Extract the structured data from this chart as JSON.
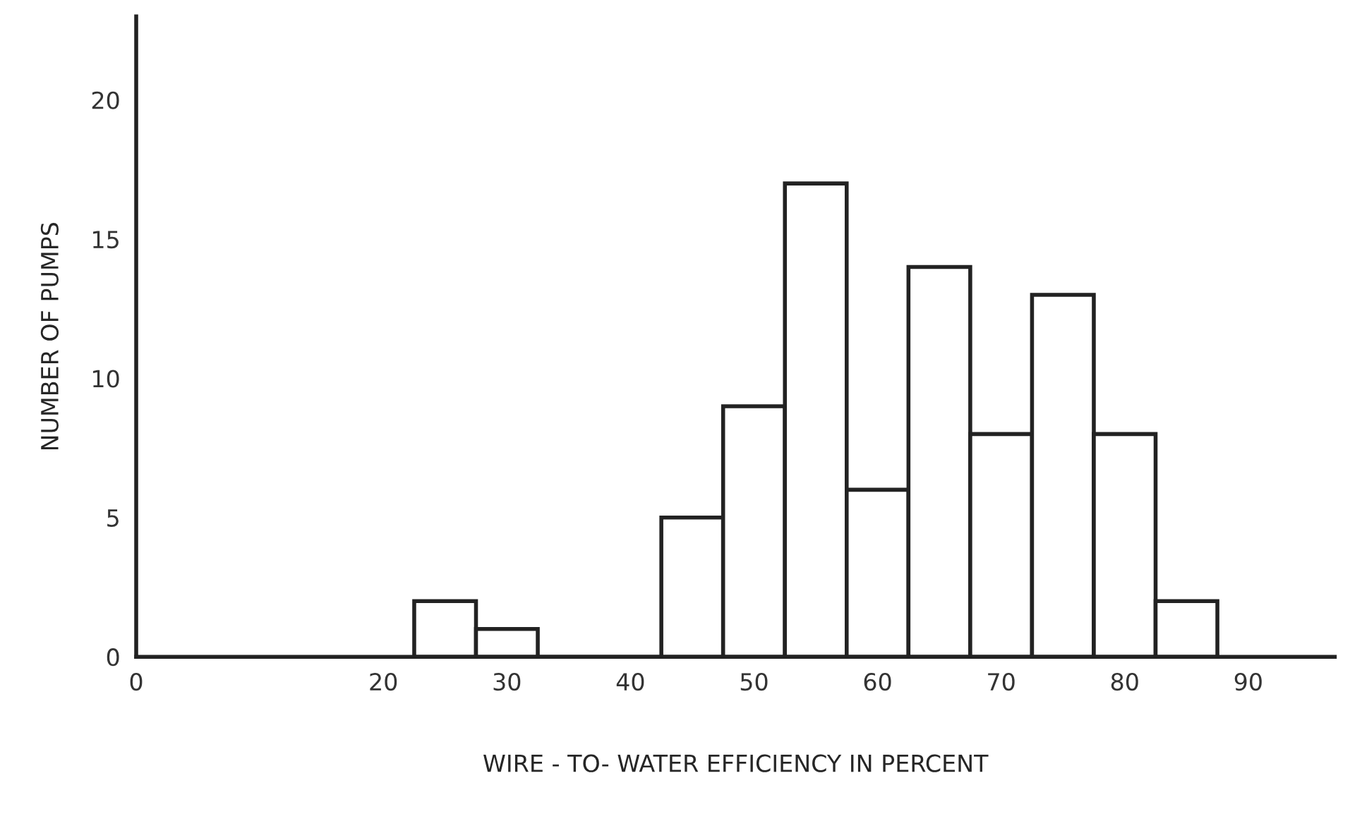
{
  "chart_data": {
    "type": "histogram",
    "xlabel": "WIRE - TO- WATER EFFICIENCY IN PERCENT",
    "ylabel": "NUMBER OF PUMPS",
    "bins": [
      22.5,
      27.5,
      32.5,
      37.5,
      42.5,
      47.5,
      52.5,
      57.5,
      62.5,
      67.5,
      72.5,
      77.5,
      82.5,
      87.5
    ],
    "values": [
      2,
      1,
      0,
      0,
      5,
      9,
      17,
      6,
      14,
      8,
      13,
      8,
      2
    ],
    "color": "#ffffff",
    "xlim": [
      0,
      97
    ],
    "xticks": [
      0,
      20,
      30,
      40,
      50,
      60,
      70,
      80,
      90
    ],
    "ylim": [
      0,
      23
    ],
    "yticks": [
      0,
      5,
      10,
      15,
      20
    ],
    "grid": false
  }
}
